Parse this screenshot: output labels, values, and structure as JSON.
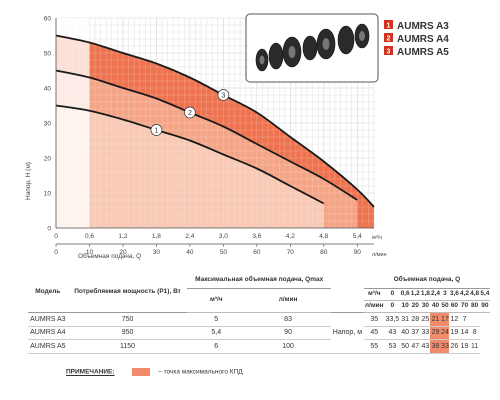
{
  "chart_data": {
    "type": "line",
    "xlabel": "Объемная подача, Q",
    "ylabel": "Напор, H (м)",
    "x_unit": "м³/ч",
    "x2_unit": "л/мин",
    "xlim": [
      0,
      5.7
    ],
    "ylim": [
      0,
      60
    ],
    "xticks": [
      "0",
      "0,6",
      "1,2",
      "1,8",
      "2,4",
      "3,0",
      "3,6",
      "4,2",
      "4,8",
      "5,4"
    ],
    "x2ticks": [
      "0",
      "10",
      "20",
      "30",
      "40",
      "50",
      "60",
      "70",
      "80",
      "90"
    ],
    "yticks": [
      "0",
      "10",
      "20",
      "30",
      "40",
      "50",
      "60"
    ],
    "grid": true,
    "series": [
      {
        "name": "1",
        "x": [
          0,
          0.6,
          1.2,
          1.8,
          2.4,
          3.0,
          3.6,
          4.2,
          4.8
        ],
        "y": [
          35,
          33.5,
          31,
          28,
          25,
          21,
          17,
          12,
          7
        ]
      },
      {
        "name": "2",
        "x": [
          0,
          0.6,
          1.2,
          1.8,
          2.4,
          3.0,
          3.6,
          4.2,
          4.8,
          5.4
        ],
        "y": [
          45,
          43,
          40,
          37,
          33,
          29,
          24,
          19,
          14,
          8
        ]
      },
      {
        "name": "3",
        "x": [
          0,
          0.6,
          1.2,
          1.8,
          2.4,
          3.0,
          3.6,
          4.2,
          4.8,
          5.4,
          5.7
        ],
        "y": [
          55,
          53,
          50,
          47,
          43,
          38,
          33,
          26,
          19,
          11,
          6
        ]
      }
    ],
    "legend": {
      "placement": "top-right",
      "items": [
        {
          "num": "1",
          "label": "AUMRS A3"
        },
        {
          "num": "2",
          "label": "AUMRS A4"
        },
        {
          "num": "3",
          "label": "AUMRS A5"
        }
      ]
    }
  },
  "table": {
    "col_model": "Модель",
    "col_power": "Потребляемая мощность (P1), Вт",
    "col_max_flow": "Максимальная объемная подача, Qmax",
    "col_flow_group": "Объемная подача, Q",
    "unit_m3h": "м³/ч",
    "unit_lmin": "л/мин",
    "head_label": "Напор, м",
    "q_m3h": [
      "0",
      "0,6",
      "1,2",
      "1,8",
      "2,4",
      "3",
      "3,6",
      "4,2",
      "4,8",
      "5,4"
    ],
    "q_lmin": [
      "0",
      "10",
      "20",
      "30",
      "40",
      "50",
      "60",
      "70",
      "80",
      "90"
    ],
    "rows": [
      {
        "model": "AUMRS A3",
        "power": "750",
        "qmax_m3h": "5",
        "qmax_lmin": "83",
        "head": [
          "35",
          "33,5",
          "31",
          "28",
          "25",
          "21",
          "17",
          "12",
          "7",
          ""
        ],
        "hl": [
          5,
          6
        ]
      },
      {
        "model": "AUMRS A4",
        "power": "950",
        "qmax_m3h": "5,4",
        "qmax_lmin": "90",
        "head": [
          "45",
          "43",
          "40",
          "37",
          "33",
          "29",
          "24",
          "19",
          "14",
          "8"
        ],
        "hl": [
          5,
          6
        ]
      },
      {
        "model": "AUMRS A5",
        "power": "1150",
        "qmax_m3h": "6",
        "qmax_lmin": "100",
        "head": [
          "55",
          "53",
          "50",
          "47",
          "43",
          "38",
          "33",
          "26",
          "19",
          "11"
        ],
        "hl": [
          5,
          6
        ]
      }
    ]
  },
  "note": {
    "label": "ПРИМЕЧАНИЕ:",
    "text": "– точка максимального КПД"
  },
  "colors": {
    "band_a3": "#f8c9b5",
    "band_a4": "#f4a587",
    "band_a5": "#ee7350",
    "highlight": "#f28b6b",
    "curve": "#1a1a1a",
    "grid": "#c8c8c8",
    "legend_badge": "#d3321f"
  }
}
